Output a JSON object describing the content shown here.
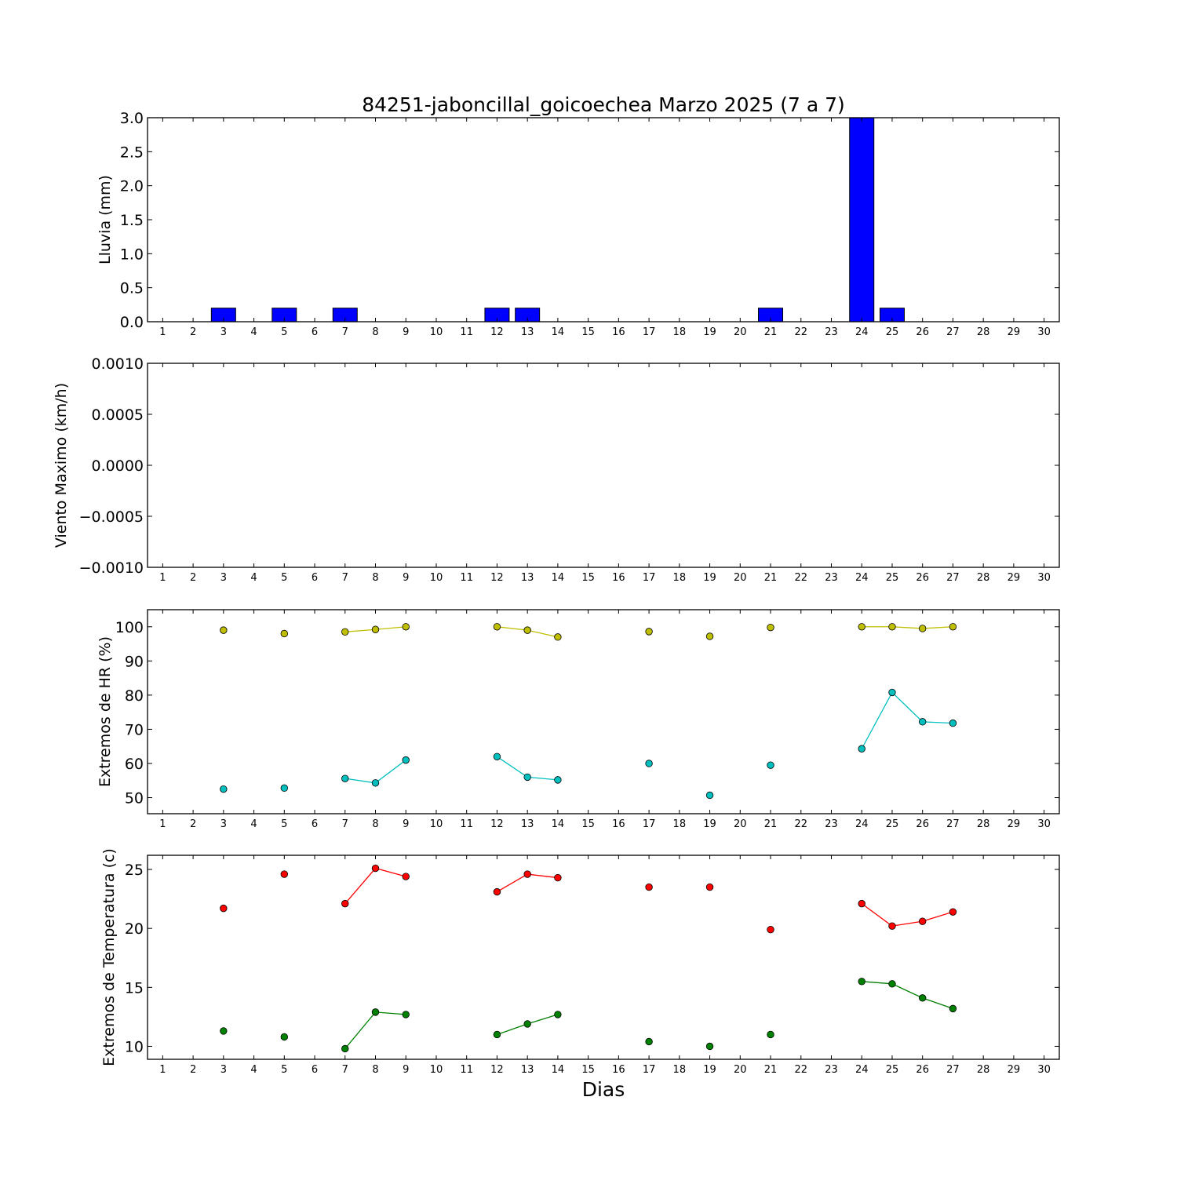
{
  "chart_data": [
    {
      "type": "bar",
      "title": "84251-jaboncillal_goicoechea Marzo 2025  (7 a 7)",
      "ylabel": "Lluvia (mm)",
      "xlabel": "",
      "x": [
        1,
        2,
        3,
        4,
        5,
        6,
        7,
        8,
        9,
        10,
        11,
        12,
        13,
        14,
        15,
        16,
        17,
        18,
        19,
        20,
        21,
        22,
        23,
        24,
        25,
        26,
        27,
        28,
        29,
        30
      ],
      "xlim": [
        0.5,
        30.5
      ],
      "ylim": [
        0,
        3.0
      ],
      "yticks": [
        0.0,
        0.5,
        1.0,
        1.5,
        2.0,
        2.5,
        3.0
      ],
      "ytick_labels": [
        "0.0",
        "0.5",
        "1.0",
        "1.5",
        "2.0",
        "2.5",
        "3.0"
      ],
      "values": [
        0,
        0,
        0.2,
        0,
        0.2,
        0,
        0.2,
        0,
        0,
        0,
        0,
        0.2,
        0.2,
        0,
        0,
        0,
        0,
        0,
        0,
        0,
        0.2,
        0,
        0,
        3.0,
        0.2,
        0,
        0,
        0,
        0,
        0
      ],
      "color": "#0000ff"
    },
    {
      "type": "line",
      "ylabel": "Viento Maximo (km/h)",
      "xlabel": "",
      "x": [
        1,
        2,
        3,
        4,
        5,
        6,
        7,
        8,
        9,
        10,
        11,
        12,
        13,
        14,
        15,
        16,
        17,
        18,
        19,
        20,
        21,
        22,
        23,
        24,
        25,
        26,
        27,
        28,
        29,
        30
      ],
      "xlim": [
        0.5,
        30.5
      ],
      "ylim": [
        -0.001,
        0.001
      ],
      "yticks": [
        -0.001,
        -0.0005,
        0.0,
        0.0005,
        0.001
      ],
      "ytick_labels": [
        "−0.0010",
        "−0.0005",
        "0.0000",
        "0.0005",
        "0.0010"
      ],
      "series": []
    },
    {
      "type": "line",
      "ylabel": "Extremos de HR (%)",
      "xlabel": "",
      "x": [
        1,
        2,
        3,
        4,
        5,
        6,
        7,
        8,
        9,
        10,
        11,
        12,
        13,
        14,
        15,
        16,
        17,
        18,
        19,
        20,
        21,
        22,
        23,
        24,
        25,
        26,
        27,
        28,
        29,
        30
      ],
      "xlim": [
        0.5,
        30.5
      ],
      "ylim": [
        45.3,
        105
      ],
      "yticks": [
        50,
        60,
        70,
        80,
        90,
        100
      ],
      "ytick_labels": [
        "50",
        "60",
        "70",
        "80",
        "90",
        "100"
      ],
      "series": [
        {
          "color": "#bfbf00",
          "values": [
            null,
            null,
            99,
            null,
            98,
            null,
            98.5,
            99.2,
            100,
            null,
            null,
            100,
            99,
            97,
            null,
            null,
            98.6,
            null,
            97.2,
            null,
            99.8,
            null,
            null,
            100,
            100,
            99.5,
            100,
            null,
            null,
            null
          ]
        },
        {
          "color": "#00bfbf",
          "values": [
            null,
            null,
            52.5,
            null,
            52.8,
            null,
            55.6,
            54.3,
            61,
            null,
            null,
            62,
            56,
            55.2,
            null,
            null,
            60,
            null,
            50.7,
            null,
            59.5,
            null,
            null,
            64.3,
            80.8,
            72.2,
            71.8,
            null,
            null,
            null
          ]
        }
      ]
    },
    {
      "type": "line",
      "ylabel": "Extremos de Temperatura (c)",
      "xlabel": "Dias",
      "x": [
        1,
        2,
        3,
        4,
        5,
        6,
        7,
        8,
        9,
        10,
        11,
        12,
        13,
        14,
        15,
        16,
        17,
        18,
        19,
        20,
        21,
        22,
        23,
        24,
        25,
        26,
        27,
        28,
        29,
        30
      ],
      "xlim": [
        0.5,
        30.5
      ],
      "ylim": [
        8.9,
        26.2
      ],
      "yticks": [
        10,
        15,
        20,
        25
      ],
      "ytick_labels": [
        "10",
        "15",
        "20",
        "25"
      ],
      "series": [
        {
          "color": "#ff0000",
          "values": [
            null,
            null,
            21.7,
            null,
            24.6,
            null,
            22.1,
            25.1,
            24.4,
            null,
            null,
            23.1,
            24.6,
            24.3,
            null,
            null,
            23.5,
            null,
            23.5,
            null,
            19.9,
            null,
            null,
            22.1,
            20.2,
            20.6,
            21.4,
            null,
            null,
            null
          ]
        },
        {
          "color": "#008000",
          "values": [
            null,
            null,
            11.3,
            null,
            10.8,
            null,
            9.8,
            12.9,
            12.7,
            null,
            null,
            11,
            11.9,
            12.7,
            null,
            null,
            10.4,
            null,
            10,
            null,
            11,
            null,
            null,
            15.5,
            15.3,
            14.1,
            13.2,
            null,
            null,
            null
          ]
        }
      ]
    }
  ]
}
